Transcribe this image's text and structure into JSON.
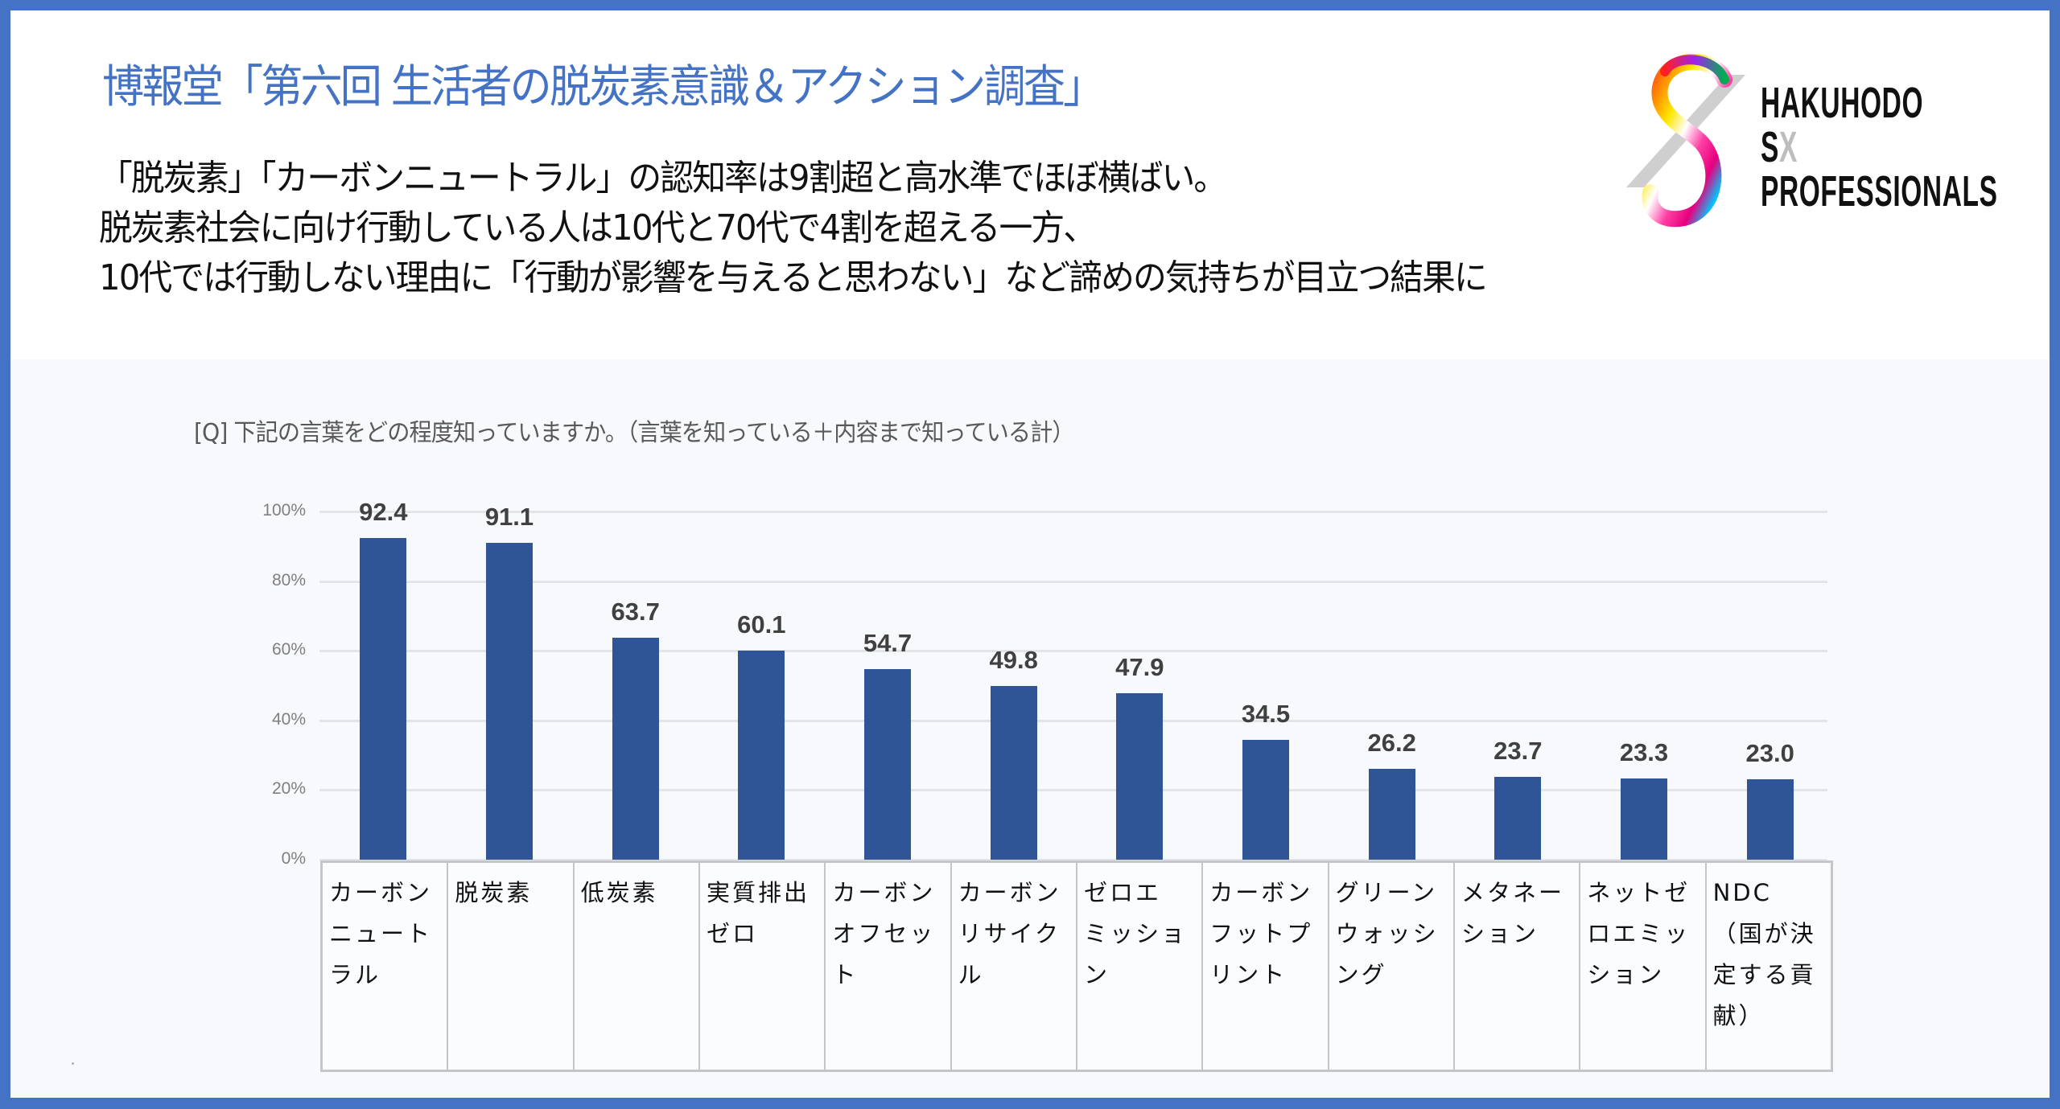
{
  "header": {
    "title": "博報堂「第六回 生活者の脱炭素意識＆アクション調査」",
    "lead_lines": [
      "「脱炭素」「カーボンニュートラル」の認知率は9割超と高水準でほぼ横ばい。",
      "脱炭素社会に向け行動している人は10代と70代で4割を超える一方、",
      "10代では行動しない理由に「行動が影響を与えると思わない」など諦めの気持ちが目立つ結果に"
    ]
  },
  "logo": {
    "line1": "HAKUHODO",
    "line2_s": "S",
    "line2_x": "X",
    "line3": "PROFESSIONALS",
    "icon": "infinity-eight-rainbow-icon"
  },
  "colors": {
    "frame": "#4472c4",
    "title": "#4472c4",
    "bar": "#2f5597",
    "panel": "#f8f9fc"
  },
  "chart_data": {
    "type": "bar",
    "title": "[Q] 下記の言葉をどの程度知っていますか。（言葉を知っている＋内容まで知っている計）",
    "xlabel": "",
    "ylabel": "",
    "ylim": [
      0,
      100
    ],
    "yticks": [
      "0%",
      "20%",
      "40%",
      "60%",
      "80%",
      "100%"
    ],
    "grid": true,
    "legend": null,
    "categories": [
      "カーボン\nニュート\nラル",
      "脱炭素",
      "低炭素",
      "実質排出\nゼロ",
      "カーボン\nオフセッ\nト",
      "カーボン\nリサイク\nル",
      "ゼロエ\nミッショ\nン",
      "カーボン\nフットプ\nリント",
      "グリーン\nウォッシ\nング",
      "メタネー\nション",
      "ネットゼ\nロエミッ\nション",
      "NDC\n（国が決\n定する貢\n献）"
    ],
    "values": [
      92.4,
      91.1,
      63.7,
      60.1,
      54.7,
      49.8,
      47.9,
      34.5,
      26.2,
      23.7,
      23.3,
      23.0
    ],
    "value_labels": [
      "92.4",
      "91.1",
      "63.7",
      "60.1",
      "54.7",
      "49.8",
      "47.9",
      "34.5",
      "26.2",
      "23.7",
      "23.3",
      "23.0"
    ]
  }
}
